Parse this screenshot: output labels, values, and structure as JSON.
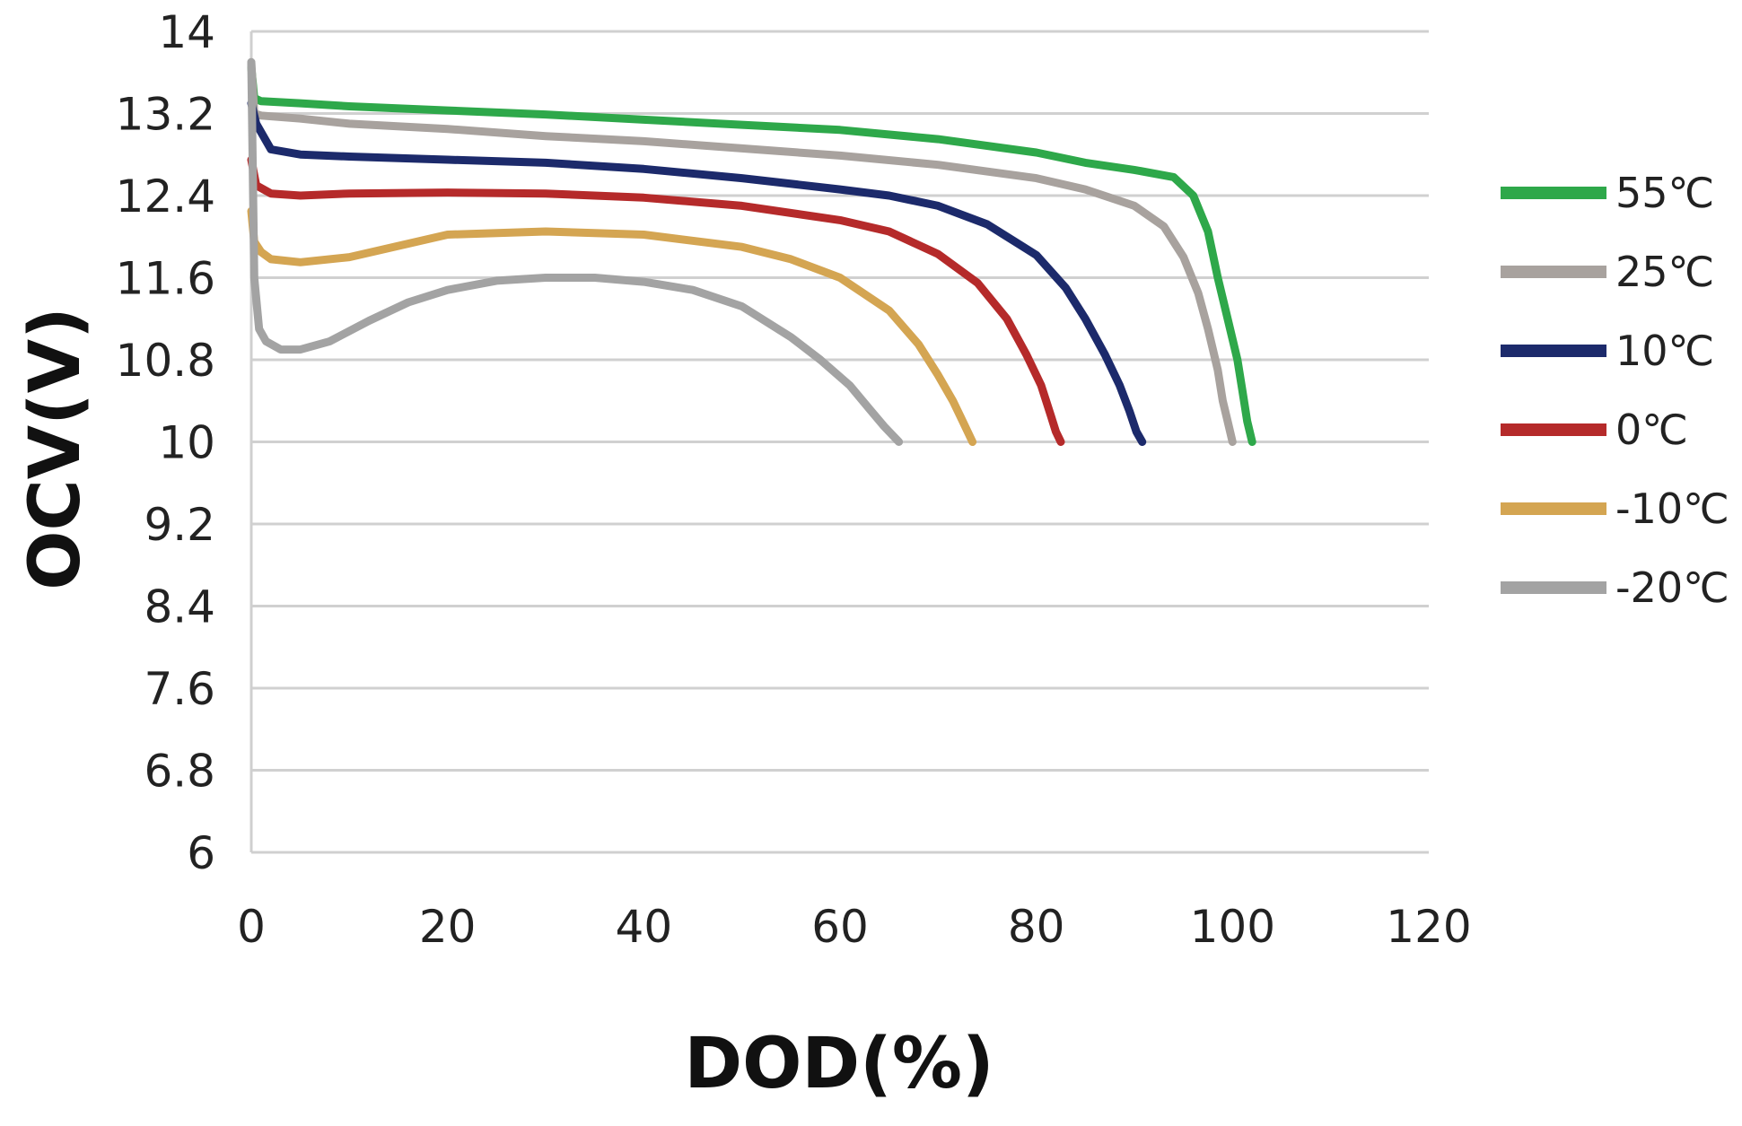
{
  "chart_data": {
    "type": "line",
    "title": "",
    "xlabel": "DOD(%)",
    "ylabel": "OCV(V)",
    "xlim": [
      0,
      120
    ],
    "ylim": [
      6,
      14
    ],
    "x_ticks": [
      "0",
      "20",
      "40",
      "60",
      "80",
      "100",
      "120"
    ],
    "y_ticks": [
      "6",
      "6.8",
      "7.6",
      "8.4",
      "9.2",
      "10",
      "10.8",
      "11.6",
      "12.4",
      "13.2",
      "14"
    ],
    "grid": true,
    "legend_position": "right",
    "series": [
      {
        "name": "55℃",
        "color": "#2ea84a",
        "x": [
          0,
          0.3,
          1,
          5,
          10,
          20,
          30,
          40,
          50,
          60,
          70,
          80,
          85,
          90,
          94,
          96,
          97.5,
          98.5,
          99.5,
          100.5,
          101,
          101.5,
          102
        ],
        "y": [
          13.65,
          13.35,
          13.32,
          13.3,
          13.27,
          13.23,
          13.19,
          13.14,
          13.09,
          13.04,
          12.95,
          12.82,
          12.72,
          12.65,
          12.58,
          12.4,
          12.05,
          11.6,
          11.2,
          10.8,
          10.5,
          10.2,
          10.0
        ]
      },
      {
        "name": "25℃",
        "color": "#a8a29e",
        "x": [
          0,
          0.3,
          1,
          5,
          10,
          20,
          30,
          40,
          50,
          60,
          70,
          80,
          85,
          90,
          93,
          95,
          96.5,
          97.5,
          98.5,
          99,
          99.5,
          100
        ],
        "y": [
          13.7,
          13.2,
          13.18,
          13.15,
          13.1,
          13.05,
          12.98,
          12.93,
          12.86,
          12.79,
          12.7,
          12.57,
          12.46,
          12.3,
          12.1,
          11.8,
          11.45,
          11.1,
          10.7,
          10.4,
          10.2,
          10.0
        ]
      },
      {
        "name": "10℃",
        "color": "#1c2a6b",
        "x": [
          0,
          0.5,
          2,
          5,
          10,
          20,
          30,
          40,
          50,
          60,
          65,
          70,
          75,
          80,
          83,
          85,
          87,
          88.5,
          89.5,
          90.2,
          90.8
        ],
        "y": [
          13.3,
          13.1,
          12.85,
          12.8,
          12.78,
          12.75,
          12.72,
          12.66,
          12.57,
          12.46,
          12.4,
          12.3,
          12.12,
          11.82,
          11.5,
          11.2,
          10.85,
          10.55,
          10.3,
          10.1,
          10.0
        ]
      },
      {
        "name": "0℃",
        "color": "#b52a2a",
        "x": [
          0,
          0.5,
          2,
          5,
          10,
          20,
          30,
          40,
          50,
          60,
          65,
          70,
          74,
          77,
          79,
          80.5,
          81.5,
          82,
          82.5
        ],
        "y": [
          12.75,
          12.5,
          12.42,
          12.4,
          12.42,
          12.43,
          12.42,
          12.38,
          12.3,
          12.16,
          12.05,
          11.83,
          11.55,
          11.2,
          10.85,
          10.55,
          10.25,
          10.1,
          10.0
        ]
      },
      {
        "name": "-10℃",
        "color": "#d4a552",
        "x": [
          0,
          0.3,
          1,
          2,
          5,
          10,
          20,
          30,
          40,
          50,
          55,
          60,
          65,
          68,
          70,
          71.5,
          72.5,
          73.5
        ],
        "y": [
          12.25,
          11.95,
          11.85,
          11.78,
          11.75,
          11.8,
          12.02,
          12.05,
          12.02,
          11.9,
          11.78,
          11.6,
          11.28,
          10.95,
          10.65,
          10.4,
          10.2,
          10.0
        ]
      },
      {
        "name": "-20℃",
        "color": "#a3a3a3",
        "x": [
          0,
          0.3,
          0.8,
          1.5,
          3,
          5,
          8,
          12,
          16,
          20,
          25,
          30,
          35,
          40,
          45,
          50,
          55,
          58,
          61,
          63,
          64.5,
          66
        ],
        "y": [
          13.7,
          11.6,
          11.1,
          10.98,
          10.9,
          10.9,
          10.98,
          11.18,
          11.36,
          11.48,
          11.57,
          11.6,
          11.6,
          11.56,
          11.48,
          11.32,
          11.02,
          10.8,
          10.55,
          10.32,
          10.15,
          10.0
        ]
      }
    ]
  }
}
